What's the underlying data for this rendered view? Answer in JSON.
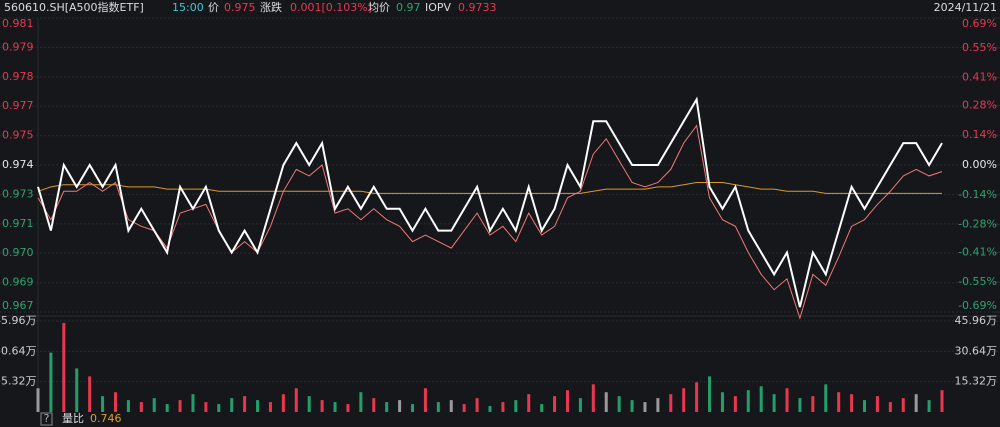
{
  "header": {
    "symbol": "560610.SH[A500指数ETF]",
    "time": "15:00",
    "price_label": "价",
    "price": "0.975",
    "change_label": "涨跌",
    "change": "0.001[0.103%]",
    "avg_label": "均价",
    "avg": "0.97",
    "iopv_label": "IOPV",
    "iopv": "0.9733",
    "date": "2024/11/21"
  },
  "chart_data": [
    {
      "type": "line",
      "ylim": [
        0.96728,
        0.98072
      ],
      "yticks": [
        {
          "value": 0.96728,
          "label": "0.967"
        },
        {
          "value": 0.96862,
          "label": "0.969"
        },
        {
          "value": 0.96997,
          "label": "0.970"
        },
        {
          "value": 0.97131,
          "label": "0.971"
        },
        {
          "value": 0.97266,
          "label": "0.973"
        },
        0.974,
        {
          "value": 0.97534,
          "label": "0.975"
        },
        {
          "value": 0.97669,
          "label": "0.977"
        },
        {
          "value": 0.97803,
          "label": "0.978"
        },
        {
          "value": 0.97938,
          "label": "0.979"
        },
        {
          "value": 0.98072,
          "label": "0.981"
        }
      ],
      "y2lim": [
        -0.69,
        0.69
      ],
      "y2ticks": [
        {
          "value": -0.69,
          "label": "-0.69%"
        },
        {
          "value": -0.55,
          "label": "-0.55%"
        },
        {
          "value": -0.41,
          "label": "-0.41%"
        },
        {
          "value": -0.28,
          "label": "-0.28%"
        },
        {
          "value": -0.14,
          "label": "-0.14%"
        },
        {
          "value": 0,
          "label": "0.00%"
        },
        {
          "value": 0.14,
          "label": "0.14%"
        },
        {
          "value": 0.28,
          "label": "0.28%"
        },
        {
          "value": 0.41,
          "label": "0.41%"
        },
        {
          "value": 0.55,
          "label": "0.55%"
        },
        {
          "value": 0.69,
          "label": "0.69%"
        }
      ],
      "up_color": "#e8384f",
      "down_color": "#2fa36b",
      "flat_color": "#e6e6e6",
      "grid": true,
      "series": [
        {
          "color": "#ffffff",
          "values": [
            0.973,
            0.971,
            0.974,
            0.973,
            0.974,
            0.973,
            0.974,
            0.971,
            0.972,
            0.971,
            0.97,
            0.973,
            0.972,
            0.973,
            0.971,
            0.97,
            0.971,
            0.97,
            0.972,
            0.974,
            0.975,
            0.974,
            0.975,
            0.972,
            0.973,
            0.972,
            0.973,
            0.972,
            0.972,
            0.971,
            0.972,
            0.971,
            0.971,
            0.972,
            0.973,
            0.971,
            0.972,
            0.971,
            0.973,
            0.971,
            0.972,
            0.974,
            0.973,
            0.976,
            0.976,
            0.975,
            0.974,
            0.974,
            0.974,
            0.975,
            0.976,
            0.977,
            0.973,
            0.972,
            0.973,
            0.971,
            0.97,
            0.969,
            0.97,
            0.9675,
            0.97,
            0.969,
            0.971,
            0.973,
            0.972,
            0.973,
            0.974,
            0.975,
            0.975,
            0.974,
            0.975
          ]
        },
        {
          "color": "#f07878",
          "values": [
            0.9725,
            0.9715,
            0.9728,
            0.9728,
            0.9732,
            0.9728,
            0.9732,
            0.9715,
            0.9712,
            0.971,
            0.9702,
            0.9718,
            0.972,
            0.9722,
            0.971,
            0.97,
            0.9705,
            0.97,
            0.9712,
            0.9728,
            0.9738,
            0.9735,
            0.974,
            0.9718,
            0.972,
            0.9715,
            0.972,
            0.9715,
            0.9712,
            0.9705,
            0.9708,
            0.9705,
            0.9702,
            0.971,
            0.9718,
            0.9708,
            0.9712,
            0.9705,
            0.9718,
            0.9708,
            0.9712,
            0.9725,
            0.9728,
            0.9745,
            0.9752,
            0.9742,
            0.9732,
            0.973,
            0.9732,
            0.9738,
            0.975,
            0.9758,
            0.9725,
            0.9715,
            0.9712,
            0.97,
            0.969,
            0.9683,
            0.9688,
            0.967,
            0.969,
            0.9685,
            0.9698,
            0.9712,
            0.9715,
            0.9722,
            0.9728,
            0.9735,
            0.9738,
            0.9735,
            0.9737
          ]
        },
        {
          "color": "#d89a2a",
          "values": [
            0.9728,
            0.973,
            0.9731,
            0.9731,
            0.9731,
            0.9731,
            0.9731,
            0.973,
            0.973,
            0.973,
            0.9729,
            0.9729,
            0.9729,
            0.9729,
            0.9728,
            0.9728,
            0.9728,
            0.9728,
            0.9728,
            0.9728,
            0.9728,
            0.9728,
            0.9728,
            0.9728,
            0.9728,
            0.9728,
            0.9727,
            0.9727,
            0.9727,
            0.9727,
            0.9727,
            0.9727,
            0.9727,
            0.9727,
            0.9727,
            0.9727,
            0.9727,
            0.9727,
            0.9727,
            0.9727,
            0.9727,
            0.9727,
            0.9727,
            0.9728,
            0.9729,
            0.9729,
            0.9729,
            0.9729,
            0.973,
            0.973,
            0.9731,
            0.9732,
            0.9732,
            0.9732,
            0.9731,
            0.973,
            0.9729,
            0.9729,
            0.9728,
            0.9728,
            0.9728,
            0.9727,
            0.9727,
            0.9727,
            0.9727,
            0.9727,
            0.9727,
            0.9727,
            0.9727,
            0.9727,
            0.9727
          ]
        }
      ]
    },
    {
      "type": "bar",
      "ylim": [
        0,
        45.96
      ],
      "yticks": [
        {
          "value": 15.32,
          "label": "15.32万"
        },
        {
          "value": 30.64,
          "label": "30.64万"
        },
        {
          "value": 45.96,
          "label": "45.96万"
        }
      ],
      "up_color": "#e8384f",
      "down_color": "#22a06b",
      "flat_color": "#9a9a9a",
      "values": [
        12,
        30,
        45,
        22,
        18,
        8,
        10,
        6,
        5,
        7,
        4,
        6,
        9,
        5,
        4,
        7,
        8,
        6,
        5,
        9,
        12,
        8,
        6,
        5,
        4,
        10,
        7,
        5,
        6,
        4,
        12,
        5,
        6,
        4,
        7,
        3,
        5,
        6,
        9,
        4,
        8,
        11,
        7,
        14,
        10,
        8,
        6,
        5,
        7,
        9,
        12,
        15,
        18,
        10,
        8,
        11,
        13,
        9,
        12,
        7,
        8,
        14,
        10,
        9,
        6,
        8,
        5,
        7,
        9,
        6,
        11
      ]
    }
  ],
  "footer": {
    "help": "?",
    "ratio_label": "量比",
    "ratio": "0.746"
  }
}
